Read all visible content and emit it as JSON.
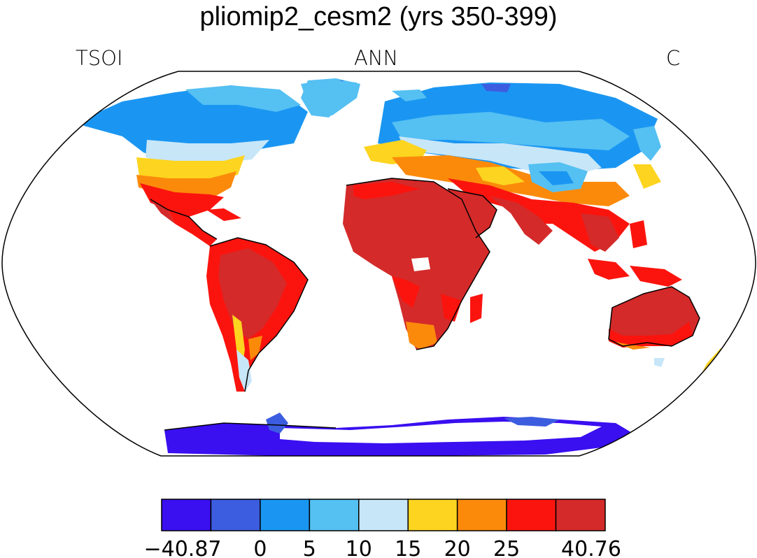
{
  "title": "pliomip2_cesm2 (yrs 350-399)",
  "left_label": "TSOI",
  "center_label": "ANN",
  "right_label": "C",
  "colorbar": {
    "colors": [
      "#3a0ff0",
      "#3d5de0",
      "#1a96f2",
      "#55c0f2",
      "#c7e6f8",
      "#fdd41f",
      "#fb8a0b",
      "#fb140e",
      "#d42a2a"
    ],
    "tick_labels": [
      "−40.87",
      "0",
      "5",
      "10",
      "15",
      "20",
      "25",
      "40.76"
    ]
  }
}
